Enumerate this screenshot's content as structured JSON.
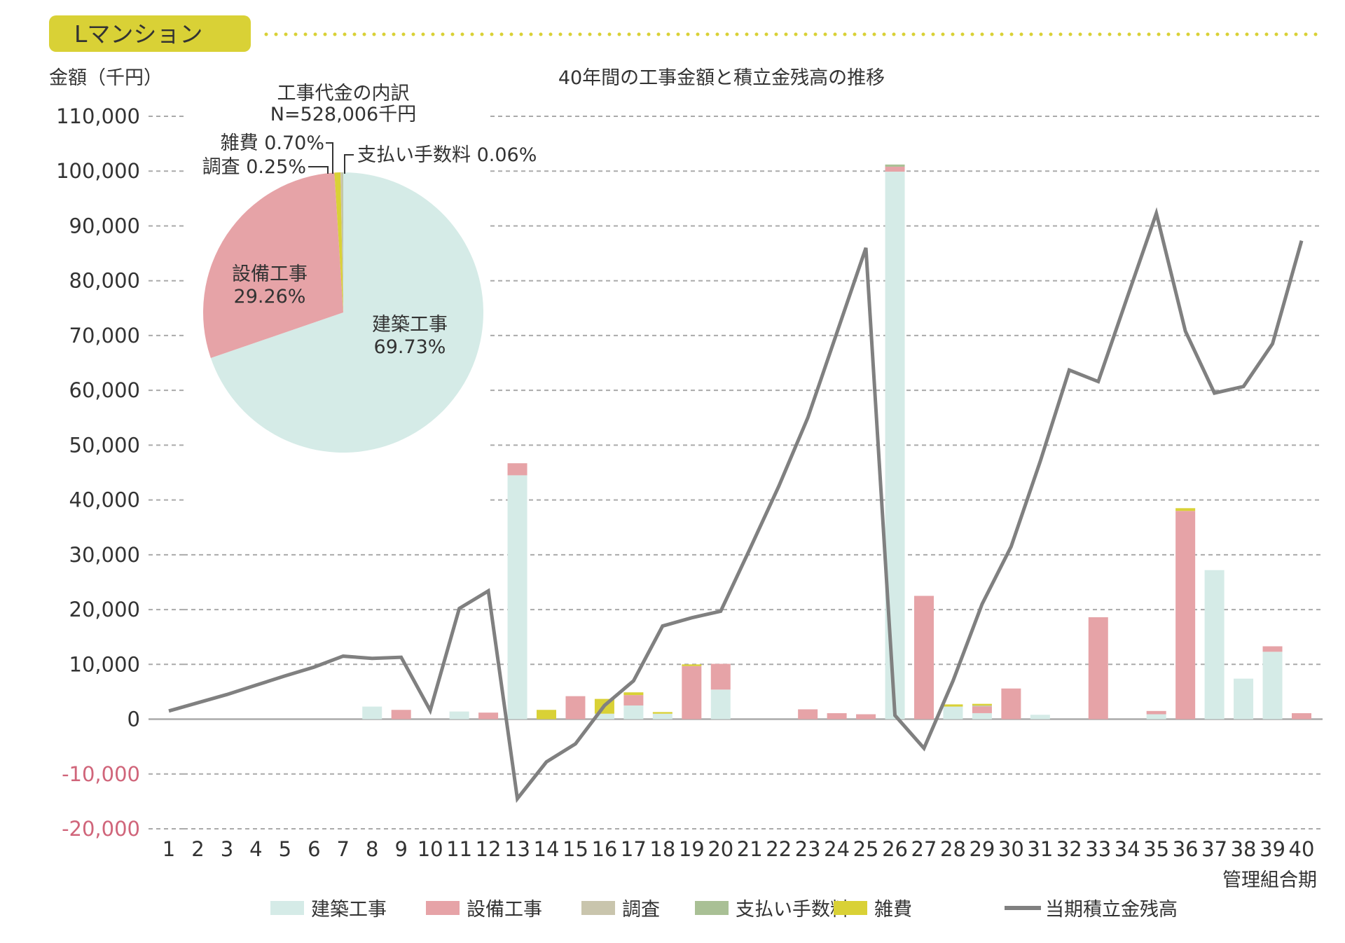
{
  "header": {
    "badge": "Lマンション"
  },
  "chart_data": {
    "type": "bar",
    "title": "40年間の工事金額と積立金残高の推移",
    "ylabel": "金額（千円）",
    "xlabel": "管理組合期",
    "ylim": [
      -20000,
      110000
    ],
    "yticks": [
      110000,
      100000,
      90000,
      80000,
      70000,
      60000,
      50000,
      40000,
      30000,
      20000,
      10000,
      0,
      -10000,
      -20000
    ],
    "ytick_labels": [
      "110,000",
      "100,000",
      "90,000",
      "80,000",
      "70,000",
      "60,000",
      "50,000",
      "40,000",
      "30,000",
      "20,000",
      "10,000",
      "0",
      "-10,000",
      "-20,000"
    ],
    "categories": [
      "1",
      "2",
      "3",
      "4",
      "5",
      "6",
      "7",
      "8",
      "9",
      "10",
      "11",
      "12",
      "13",
      "14",
      "15",
      "16",
      "17",
      "18",
      "19",
      "20",
      "21",
      "22",
      "23",
      "24",
      "25",
      "26",
      "27",
      "28",
      "29",
      "30",
      "31",
      "32",
      "33",
      "34",
      "35",
      "36",
      "37",
      "38",
      "39",
      "40"
    ],
    "series": [
      {
        "name": "建築工事",
        "color": "#d5ebe7",
        "values": [
          0,
          0,
          0,
          0,
          0,
          0,
          0,
          2300,
          0,
          0,
          1400,
          0,
          44500,
          0,
          0,
          1000,
          2500,
          1000,
          0,
          5400,
          0,
          0,
          0,
          0,
          0,
          99900,
          0,
          2300,
          1100,
          0,
          800,
          0,
          0,
          0,
          900,
          0,
          27200,
          7400,
          12300,
          0
        ]
      },
      {
        "name": "設備工事",
        "color": "#e6a3a7",
        "values": [
          0,
          0,
          0,
          0,
          0,
          0,
          0,
          0,
          1700,
          0,
          0,
          1200,
          2200,
          0,
          4200,
          0,
          1900,
          0,
          9700,
          4700,
          0,
          0,
          1800,
          1100,
          900,
          900,
          22500,
          0,
          1200,
          5600,
          0,
          0,
          18600,
          0,
          600,
          38000,
          0,
          0,
          1000,
          1100
        ]
      },
      {
        "name": "調査",
        "color": "#c9c5ad",
        "values": [
          0,
          0,
          0,
          0,
          0,
          0,
          0,
          0,
          0,
          0,
          0,
          0,
          0,
          0,
          0,
          0,
          0,
          0,
          0,
          0,
          0,
          0,
          0,
          0,
          0,
          0,
          0,
          0,
          200,
          0,
          0,
          0,
          0,
          0,
          0,
          0,
          0,
          0,
          0,
          0
        ]
      },
      {
        "name": "支払い手数料",
        "color": "#a9c095",
        "values": [
          0,
          0,
          0,
          0,
          0,
          0,
          0,
          0,
          0,
          0,
          0,
          0,
          0,
          0,
          0,
          0,
          0,
          0,
          0,
          0,
          0,
          0,
          0,
          0,
          0,
          400,
          0,
          0,
          0,
          0,
          0,
          0,
          0,
          0,
          0,
          0,
          0,
          0,
          0,
          0
        ]
      },
      {
        "name": "雑費",
        "color": "#d9d136",
        "values": [
          0,
          0,
          0,
          0,
          0,
          0,
          0,
          0,
          0,
          0,
          0,
          0,
          0,
          1700,
          0,
          2700,
          500,
          300,
          300,
          0,
          0,
          0,
          0,
          0,
          0,
          0,
          0,
          400,
          300,
          0,
          0,
          0,
          0,
          0,
          0,
          500,
          0,
          0,
          0,
          0
        ]
      },
      {
        "name": "当期積立金残高",
        "type": "line",
        "color": "#808080",
        "values": [
          1500,
          3000,
          4500,
          6200,
          7900,
          9500,
          11500,
          11100,
          11300,
          1600,
          20200,
          23400,
          -14500,
          -7800,
          -4500,
          2500,
          7000,
          17000,
          18500,
          19700,
          31000,
          42500,
          55000,
          70500,
          86000,
          700,
          -5300,
          7000,
          21000,
          31500,
          47000,
          63700,
          61600,
          77000,
          92300,
          70800,
          59500,
          60700,
          68500,
          87300
        ]
      }
    ],
    "legend_position": "bottom",
    "grid": true,
    "inset_pie": {
      "type": "pie",
      "title": "工事代金の内訳",
      "subtitle": "N=528,006千円",
      "slices": [
        {
          "name": "建築工事",
          "value": 69.73,
          "label": "69.73%",
          "color": "#d5ebe7"
        },
        {
          "name": "設備工事",
          "value": 29.26,
          "label": "29.26%",
          "color": "#e6a3a7"
        },
        {
          "name": "雑費",
          "value": 0.7,
          "label": "0.70%",
          "color": "#d9d136"
        },
        {
          "name": "調査",
          "value": 0.25,
          "label": "0.25%",
          "color": "#c9c5ad"
        },
        {
          "name": "支払い手数料",
          "value": 0.06,
          "label": "0.06%",
          "color": "#a9c095"
        }
      ]
    }
  }
}
